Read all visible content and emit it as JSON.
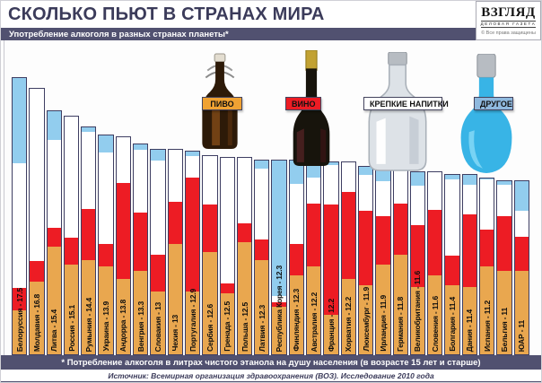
{
  "header": {
    "title": "СКОЛЬКО ПЬЮТ В СТРАНАХ МИРА",
    "subtitle": "Употребление алкоголя в разных странах планеты*",
    "logo": {
      "name": "ВЗГЛЯД",
      "tagline": "ДЕЛОВАЯ ГАЗЕТА",
      "copyright": "© Все права защищены"
    }
  },
  "legend": [
    {
      "label": "ПИВО",
      "key": "beer",
      "color": "#f0a233",
      "icon": "beer-bottle-icon"
    },
    {
      "label": "ВИНО",
      "key": "wine",
      "color": "#ed1c24",
      "icon": "wine-bottle-icon"
    },
    {
      "label": "КРЕПКИЕ НАПИТКИ",
      "key": "spirits",
      "color": "#ffffff",
      "icon": "vodka-bottle-icon"
    },
    {
      "label": "ДРУГОЕ",
      "key": "other",
      "color": "#8fb9de",
      "icon": "other-bottle-icon"
    }
  ],
  "chart_data": {
    "type": "bar",
    "stacked": true,
    "title": "СКОЛЬКО ПЬЮТ В СТРАНАХ МИРА",
    "subtitle": "Употребление алкоголя в разных странах планеты*",
    "unit": "литры чистого этанола на душу населения в год (15 лет и старше)",
    "ylim": [
      0,
      17.5
    ],
    "grid": false,
    "legend_position": "top",
    "series_names": [
      "ПИВО",
      "ВИНО",
      "КРЕПКИЕ НАПИТКИ",
      "ДРУГОЕ"
    ],
    "colors": {
      "beer": "#e9a74f",
      "wine": "#ed1c24",
      "spirits": "#ffffff",
      "other": "#92cdee"
    },
    "label_format": "{name} - {total}",
    "countries": [
      {
        "name": "Белоруссия",
        "total": 17.5,
        "beer": 2.8,
        "wine": 1.4,
        "spirits": 7.9,
        "other": 5.4
      },
      {
        "name": "Молдавия",
        "total": 16.8,
        "beer": 4.6,
        "wine": 1.3,
        "spirits": 10.9,
        "other": 0
      },
      {
        "name": "Литва",
        "total": 15.4,
        "beer": 6.8,
        "wine": 1.2,
        "spirits": 5.6,
        "other": 1.8
      },
      {
        "name": "Россия",
        "total": 15.1,
        "beer": 5.7,
        "wine": 1.7,
        "spirits": 7.7,
        "other": 0
      },
      {
        "name": "Румыния",
        "total": 14.4,
        "beer": 6.0,
        "wine": 3.2,
        "spirits": 4.9,
        "other": 0.3
      },
      {
        "name": "Украина",
        "total": 13.9,
        "beer": 5.6,
        "wine": 1.4,
        "spirits": 5.8,
        "other": 1.1
      },
      {
        "name": "Андорра",
        "total": 13.8,
        "beer": 4.8,
        "wine": 6.1,
        "spirits": 2.9,
        "other": 0
      },
      {
        "name": "Венгрия",
        "total": 13.3,
        "beer": 5.3,
        "wine": 3.7,
        "spirits": 4.0,
        "other": 0.3
      },
      {
        "name": "Словакия",
        "total": 13,
        "beer": 4.0,
        "wine": 2.3,
        "spirits": 6.0,
        "other": 0.7
      },
      {
        "name": "Чехия",
        "total": 13,
        "beer": 7.0,
        "wine": 2.7,
        "spirits": 3.3,
        "other": 0
      },
      {
        "name": "Португалия",
        "total": 12.9,
        "beer": 4.0,
        "wine": 7.2,
        "spirits": 1.4,
        "other": 0.3
      },
      {
        "name": "Сербия",
        "total": 12.6,
        "beer": 6.5,
        "wine": 3.0,
        "spirits": 3.1,
        "other": 0
      },
      {
        "name": "Гренада",
        "total": 12.5,
        "beer": 3.9,
        "wine": 0.6,
        "spirits": 8.0,
        "other": 0
      },
      {
        "name": "Польша",
        "total": 12.5,
        "beer": 7.1,
        "wine": 1.2,
        "spirits": 4.2,
        "other": 0
      },
      {
        "name": "Латвия",
        "total": 12.3,
        "beer": 6.0,
        "wine": 1.3,
        "spirits": 4.5,
        "other": 0.5
      },
      {
        "name": "Республика Корея",
        "total": 12.3,
        "beer": 3.0,
        "wine": 0.3,
        "spirits": 0.4,
        "other": 8.6
      },
      {
        "name": "Финляндия",
        "total": 12.3,
        "beer": 5.0,
        "wine": 2.0,
        "spirits": 3.8,
        "other": 1.5
      },
      {
        "name": "Австралия",
        "total": 12.2,
        "beer": 5.6,
        "wine": 4.0,
        "spirits": 1.6,
        "other": 1.0
      },
      {
        "name": "Франция",
        "total": 12.2,
        "beer": 2.5,
        "wine": 7.0,
        "spirits": 2.5,
        "other": 0.2
      },
      {
        "name": "Хорватия",
        "total": 12.2,
        "beer": 4.8,
        "wine": 5.5,
        "spirits": 1.9,
        "other": 0
      },
      {
        "name": "Люксембург",
        "total": 11.9,
        "beer": 4.4,
        "wine": 4.7,
        "spirits": 2.3,
        "other": 0.5
      },
      {
        "name": "Ирландия",
        "total": 11.9,
        "beer": 5.7,
        "wine": 3.1,
        "spirits": 2.2,
        "other": 0.9
      },
      {
        "name": "Германия",
        "total": 11.8,
        "beer": 6.3,
        "wine": 3.3,
        "spirits": 2.2,
        "other": 0
      },
      {
        "name": "Великобритания",
        "total": 11.6,
        "beer": 4.3,
        "wine": 3.9,
        "spirits": 2.5,
        "other": 0.9
      },
      {
        "name": "Словения",
        "total": 11.6,
        "beer": 5.0,
        "wine": 4.2,
        "spirits": 2.4,
        "other": 0
      },
      {
        "name": "Болгария",
        "total": 11.4,
        "beer": 4.4,
        "wine": 1.9,
        "spirits": 4.8,
        "other": 0.3
      },
      {
        "name": "Дания",
        "total": 11.4,
        "beer": 4.3,
        "wine": 4.6,
        "spirits": 1.9,
        "other": 0.6
      },
      {
        "name": "Испания",
        "total": 11.2,
        "beer": 5.6,
        "wine": 2.3,
        "spirits": 3.2,
        "other": 0.1
      },
      {
        "name": "Бельгия",
        "total": 11,
        "beer": 5.3,
        "wine": 3.5,
        "spirits": 2.0,
        "other": 0.2
      },
      {
        "name": "ЮАР",
        "total": 11,
        "beer": 5.3,
        "wine": 2.2,
        "spirits": 1.6,
        "other": 1.9
      }
    ]
  },
  "footer": {
    "note": "* Потребление алкоголя в литрах чистого этанола на душу населения (в возрасте 15 лет и старше)",
    "source": "Источник: Всемирная организация здравоохранения (ВОЗ). Исследование 2010 года"
  }
}
